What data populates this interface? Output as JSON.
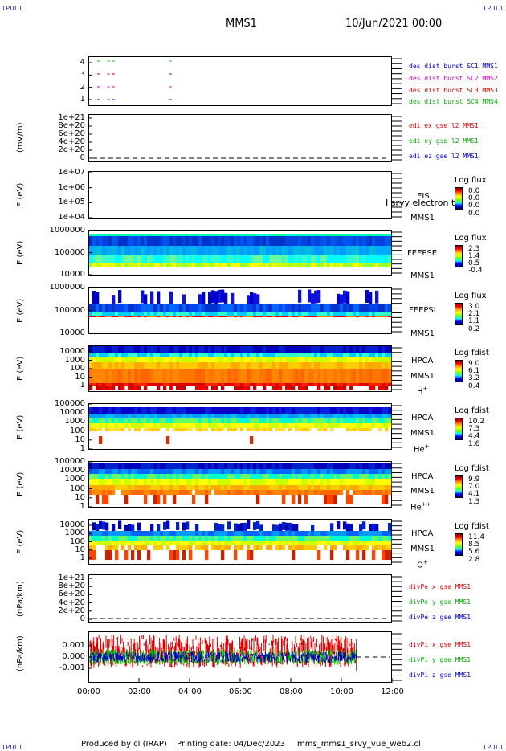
{
  "header": {
    "corner": "IPDLI",
    "title": "MMS1",
    "date": "10/Jun/2021 00:00"
  },
  "footer": {
    "produced": "Produced by cl (IRAP)",
    "printing": "Printing date: 04/Dec/2023",
    "file": "mms_mms1_srvy_vue_web2.cl"
  },
  "colors": {
    "mms1": "#0000cc",
    "mms2": "#cc00cc",
    "mms3": "#cc0000",
    "mms4": "#00cc00",
    "red": "#dd0000",
    "green": "#00cc00",
    "blue": "#0000cc"
  },
  "panels": {
    "burst": {
      "yticks": [
        "4",
        "3",
        "2",
        "1"
      ],
      "legend": [
        "des dist burst SC1 MMS1",
        "des dist burst SC2 MMS2",
        "des dist burst SC3 MMS3",
        "des dist burst SC4 MMS4"
      ]
    },
    "edi": {
      "ylabel": "(mV/m)",
      "yticks": [
        "1e+21",
        "8e+20",
        "6e+20",
        "4e+20",
        "2e+20",
        "0"
      ],
      "legend": [
        "edi ex gse l2 MMS1",
        "edi ey gse l2 MMS1",
        "edi ez gse l2 MMS1"
      ]
    },
    "eis": {
      "ylabel": "E (eV)",
      "yticks": [
        "1e+07",
        "1e+06",
        "1e+05",
        "1e+04"
      ],
      "name": "EIS",
      "overlay": "I srvy electron to",
      "sc": "MMS1",
      "cb_title": "Log flux",
      "cb_vals": [
        "0.0",
        "0.0",
        "0.0",
        "0.0"
      ]
    },
    "feepse": {
      "ylabel": "E (eV)",
      "yticks": [
        "1000000",
        "100000",
        "10000"
      ],
      "name": "FEEPSE",
      "sc": "MMS1",
      "cb_title": "Log flux",
      "cb_vals": [
        "2.3",
        "1.4",
        "0.5",
        "-0.4"
      ]
    },
    "feepsi": {
      "ylabel": "E (eV)",
      "yticks": [
        "1000000",
        "100000",
        "10000"
      ],
      "name": "FEEPSI",
      "sc": "MMS1",
      "cb_title": "Log flux",
      "cb_vals": [
        "3.0",
        "2.1",
        "1.1",
        "0.2"
      ]
    },
    "hpca_h": {
      "ylabel": "E (eV)",
      "yticks": [
        "10000",
        "1000",
        "100",
        "10",
        "1"
      ],
      "name": "HPCA",
      "sc": "MMS1",
      "ion": "H",
      "charge": "+",
      "cb_title": "Log fdist",
      "cb_vals": [
        "9.0",
        "6.1",
        "3.2",
        "0.4"
      ]
    },
    "hpca_he": {
      "ylabel": "E (eV)",
      "yticks": [
        "100000",
        "10000",
        "1000",
        "100",
        "10",
        "1"
      ],
      "name": "HPCA",
      "sc": "MMS1",
      "ion": "He",
      "charge": "+",
      "cb_title": "Log fdist",
      "cb_vals": [
        "10.2",
        "7.3",
        "4.4",
        "1.6"
      ]
    },
    "hpca_hepp": {
      "ylabel": "E (eV)",
      "yticks": [
        "100000",
        "10000",
        "1000",
        "100",
        "10",
        "1"
      ],
      "name": "HPCA",
      "sc": "MMS1",
      "ion": "He",
      "charge": "++",
      "cb_title": "Log fdist",
      "cb_vals": [
        "9.9",
        "7.0",
        "4.1",
        "1.3"
      ]
    },
    "hpca_o": {
      "ylabel": "E (eV)",
      "yticks": [
        "10000",
        "1000",
        "100",
        "10",
        "1"
      ],
      "name": "HPCA",
      "sc": "MMS1",
      "ion": "O",
      "charge": "+",
      "cb_title": "Log fdist",
      "cb_vals": [
        "11.4",
        "8.5",
        "5.6",
        "2.8"
      ]
    },
    "divpe": {
      "ylabel": "(nPa/km)",
      "yticks": [
        "1e+21",
        "8e+20",
        "6e+20",
        "4e+20",
        "2e+20",
        "0"
      ],
      "legend": [
        "divPe x gse MMS1",
        "divPe y gse MMS1",
        "divPe z gse MMS1"
      ]
    },
    "divpi": {
      "ylabel": "(nPa/km)",
      "yticks": [
        "0.001",
        "0.000",
        "-0.001"
      ],
      "legend": [
        "divPi x gse MMS1",
        "divPi y gse MMS1",
        "divPi z gse MMS1"
      ]
    }
  },
  "chart_data": {
    "type": "heatmap",
    "title": "MMS1",
    "xlabel": "",
    "xticks": [
      "00:00",
      "02:00",
      "04:00",
      "06:00",
      "08:00",
      "10:00",
      "12:00"
    ],
    "xlim_hours": [
      0,
      12
    ],
    "series": [
      {
        "name": "divPi x gse MMS1",
        "range": [
          -0.001,
          0.002
        ],
        "end_hours": 10.6
      },
      {
        "name": "divPi y gse MMS1",
        "range": [
          -0.0007,
          0.0007
        ],
        "end_hours": 10.6
      },
      {
        "name": "divPi z gse MMS1",
        "range": [
          -0.0005,
          0.0005
        ],
        "end_hours": 10.6
      }
    ],
    "burst_intervals_hours": [
      0.35,
      0.75,
      0.95,
      3.2
    ]
  }
}
